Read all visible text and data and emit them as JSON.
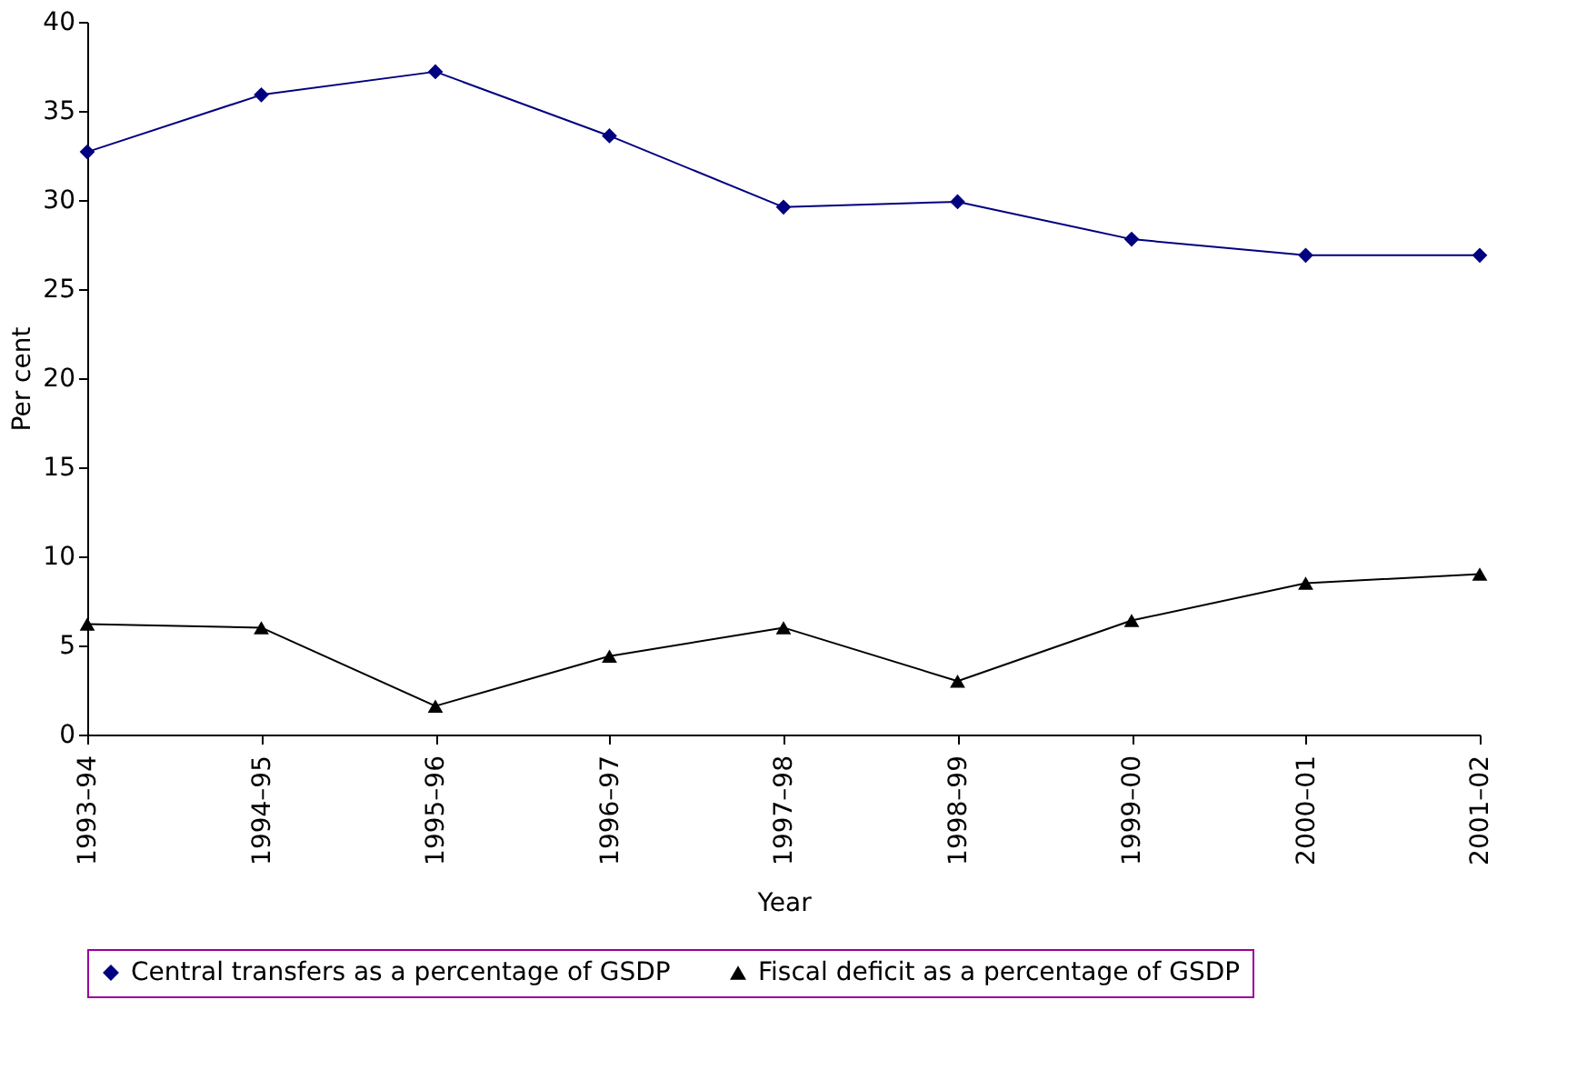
{
  "chart_data": {
    "type": "line",
    "xlabel": "Year",
    "ylabel": "Per cent",
    "categories": [
      "1993–94",
      "1994–95",
      "1995–96",
      "1996–97",
      "1997–98",
      "1998–99",
      "1999–00",
      "2000–01",
      "2001–02"
    ],
    "series": [
      {
        "name": "Central transfers as a percentage of GSDP",
        "color": "#000080",
        "marker": "diamond",
        "values": [
          32.7,
          35.9,
          37.2,
          33.6,
          29.6,
          29.9,
          27.8,
          26.9,
          26.9
        ]
      },
      {
        "name": "Fiscal deficit as a percentage of GSDP",
        "color": "#000000",
        "marker": "triangle",
        "values": [
          6.2,
          6.0,
          1.6,
          4.4,
          6.0,
          3.0,
          6.4,
          8.5,
          9.0
        ]
      }
    ],
    "ylim": [
      0,
      40
    ],
    "yticks": [
      0,
      5,
      10,
      15,
      20,
      25,
      30,
      35,
      40
    ],
    "grid": false,
    "legend": "bottom",
    "line_style": "solid"
  }
}
